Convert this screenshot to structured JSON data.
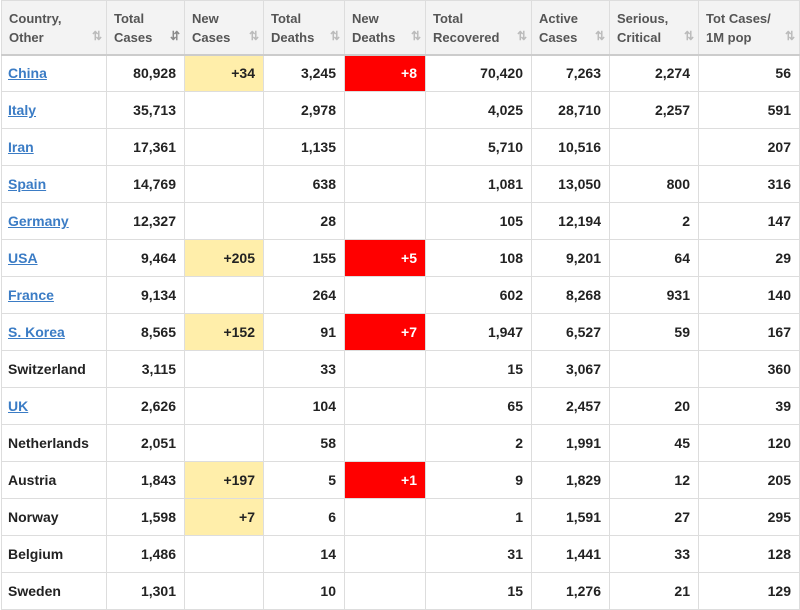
{
  "columns": [
    {
      "label": "Country,\nOther",
      "sort": "⇅",
      "active": false
    },
    {
      "label": "Total\nCases",
      "sort": "⇵",
      "active": true
    },
    {
      "label": "New\nCases",
      "sort": "⇅",
      "active": false
    },
    {
      "label": "Total\nDeaths",
      "sort": "⇅",
      "active": false
    },
    {
      "label": "New\nDeaths",
      "sort": "⇅",
      "active": false
    },
    {
      "label": "Total\nRecovered",
      "sort": "⇅",
      "active": false
    },
    {
      "label": "Active\nCases",
      "sort": "⇅",
      "active": false
    },
    {
      "label": "Serious,\nCritical",
      "sort": "⇅",
      "active": false
    },
    {
      "label": "Tot Cases/\n1M pop",
      "sort": "⇅",
      "active": false
    }
  ],
  "rows": [
    {
      "country": "China",
      "linked": true,
      "total_cases": "80,928",
      "new_cases": "+34",
      "total_deaths": "3,245",
      "new_deaths": "+8",
      "total_recovered": "70,420",
      "active_cases": "7,263",
      "serious_critical": "2,274",
      "per_million": "56"
    },
    {
      "country": "Italy",
      "linked": true,
      "total_cases": "35,713",
      "new_cases": "",
      "total_deaths": "2,978",
      "new_deaths": "",
      "total_recovered": "4,025",
      "active_cases": "28,710",
      "serious_critical": "2,257",
      "per_million": "591"
    },
    {
      "country": "Iran",
      "linked": true,
      "total_cases": "17,361",
      "new_cases": "",
      "total_deaths": "1,135",
      "new_deaths": "",
      "total_recovered": "5,710",
      "active_cases": "10,516",
      "serious_critical": "",
      "per_million": "207"
    },
    {
      "country": "Spain",
      "linked": true,
      "total_cases": "14,769",
      "new_cases": "",
      "total_deaths": "638",
      "new_deaths": "",
      "total_recovered": "1,081",
      "active_cases": "13,050",
      "serious_critical": "800",
      "per_million": "316"
    },
    {
      "country": "Germany",
      "linked": true,
      "total_cases": "12,327",
      "new_cases": "",
      "total_deaths": "28",
      "new_deaths": "",
      "total_recovered": "105",
      "active_cases": "12,194",
      "serious_critical": "2",
      "per_million": "147"
    },
    {
      "country": "USA",
      "linked": true,
      "total_cases": "9,464",
      "new_cases": "+205",
      "total_deaths": "155",
      "new_deaths": "+5",
      "total_recovered": "108",
      "active_cases": "9,201",
      "serious_critical": "64",
      "per_million": "29"
    },
    {
      "country": "France",
      "linked": true,
      "total_cases": "9,134",
      "new_cases": "",
      "total_deaths": "264",
      "new_deaths": "",
      "total_recovered": "602",
      "active_cases": "8,268",
      "serious_critical": "931",
      "per_million": "140"
    },
    {
      "country": "S. Korea",
      "linked": true,
      "total_cases": "8,565",
      "new_cases": "+152",
      "total_deaths": "91",
      "new_deaths": "+7",
      "total_recovered": "1,947",
      "active_cases": "6,527",
      "serious_critical": "59",
      "per_million": "167"
    },
    {
      "country": "Switzerland",
      "linked": false,
      "total_cases": "3,115",
      "new_cases": "",
      "total_deaths": "33",
      "new_deaths": "",
      "total_recovered": "15",
      "active_cases": "3,067",
      "serious_critical": "",
      "per_million": "360"
    },
    {
      "country": "UK",
      "linked": true,
      "total_cases": "2,626",
      "new_cases": "",
      "total_deaths": "104",
      "new_deaths": "",
      "total_recovered": "65",
      "active_cases": "2,457",
      "serious_critical": "20",
      "per_million": "39"
    },
    {
      "country": "Netherlands",
      "linked": false,
      "total_cases": "2,051",
      "new_cases": "",
      "total_deaths": "58",
      "new_deaths": "",
      "total_recovered": "2",
      "active_cases": "1,991",
      "serious_critical": "45",
      "per_million": "120"
    },
    {
      "country": "Austria",
      "linked": false,
      "total_cases": "1,843",
      "new_cases": "+197",
      "total_deaths": "5",
      "new_deaths": "+1",
      "total_recovered": "9",
      "active_cases": "1,829",
      "serious_critical": "12",
      "per_million": "205"
    },
    {
      "country": "Norway",
      "linked": false,
      "total_cases": "1,598",
      "new_cases": "+7",
      "total_deaths": "6",
      "new_deaths": "",
      "total_recovered": "1",
      "active_cases": "1,591",
      "serious_critical": "27",
      "per_million": "295"
    },
    {
      "country": "Belgium",
      "linked": false,
      "total_cases": "1,486",
      "new_cases": "",
      "total_deaths": "14",
      "new_deaths": "",
      "total_recovered": "31",
      "active_cases": "1,441",
      "serious_critical": "33",
      "per_million": "128"
    },
    {
      "country": "Sweden",
      "linked": false,
      "total_cases": "1,301",
      "new_cases": "",
      "total_deaths": "10",
      "new_deaths": "",
      "total_recovered": "15",
      "active_cases": "1,276",
      "serious_critical": "21",
      "per_million": "129"
    }
  ],
  "colors": {
    "link": "#3b7cc5",
    "new_cases_highlight": "#ffeeaa",
    "new_deaths_highlight": "#ff0000",
    "header_bg": "#f3f3f3"
  },
  "icons": {
    "sort": "sort-arrows-icon"
  }
}
